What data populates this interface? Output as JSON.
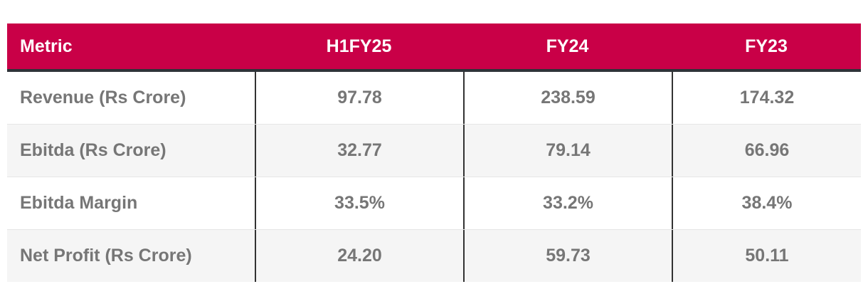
{
  "table": {
    "columns": [
      "Metric",
      "H1FY25",
      "FY24",
      "FY23"
    ],
    "rows": [
      {
        "metric": "Revenue (Rs Crore)",
        "values": [
          "97.78",
          "238.59",
          "174.32"
        ]
      },
      {
        "metric": "Ebitda (Rs Crore)",
        "values": [
          "32.77",
          "79.14",
          "66.96"
        ]
      },
      {
        "metric": "Ebitda Margin",
        "values": [
          "33.5%",
          "33.2%",
          "38.4%"
        ]
      },
      {
        "metric": "Net Profit (Rs Crore)",
        "values": [
          "24.20",
          "59.73",
          "50.11"
        ]
      }
    ]
  },
  "colors": {
    "header_bg": "#C90047",
    "header_text": "#FFFFFF",
    "header_underline": "#2F3338",
    "row_bg": "#FFFFFF",
    "row_alt_bg": "#F5F5F5",
    "cell_text": "#767676",
    "column_divider": "#333333",
    "row_divider": "#E6E6E6"
  },
  "chart_data": {
    "type": "table",
    "title": "",
    "columns": [
      "Metric",
      "H1FY25",
      "FY24",
      "FY23"
    ],
    "rows": [
      [
        "Revenue (Rs Crore)",
        97.78,
        238.59,
        174.32
      ],
      [
        "Ebitda (Rs Crore)",
        32.77,
        79.14,
        66.96
      ],
      [
        "Ebitda Margin",
        "33.5%",
        "33.2%",
        "38.4%"
      ],
      [
        "Net Profit (Rs Crore)",
        24.2,
        59.73,
        50.11
      ]
    ]
  }
}
